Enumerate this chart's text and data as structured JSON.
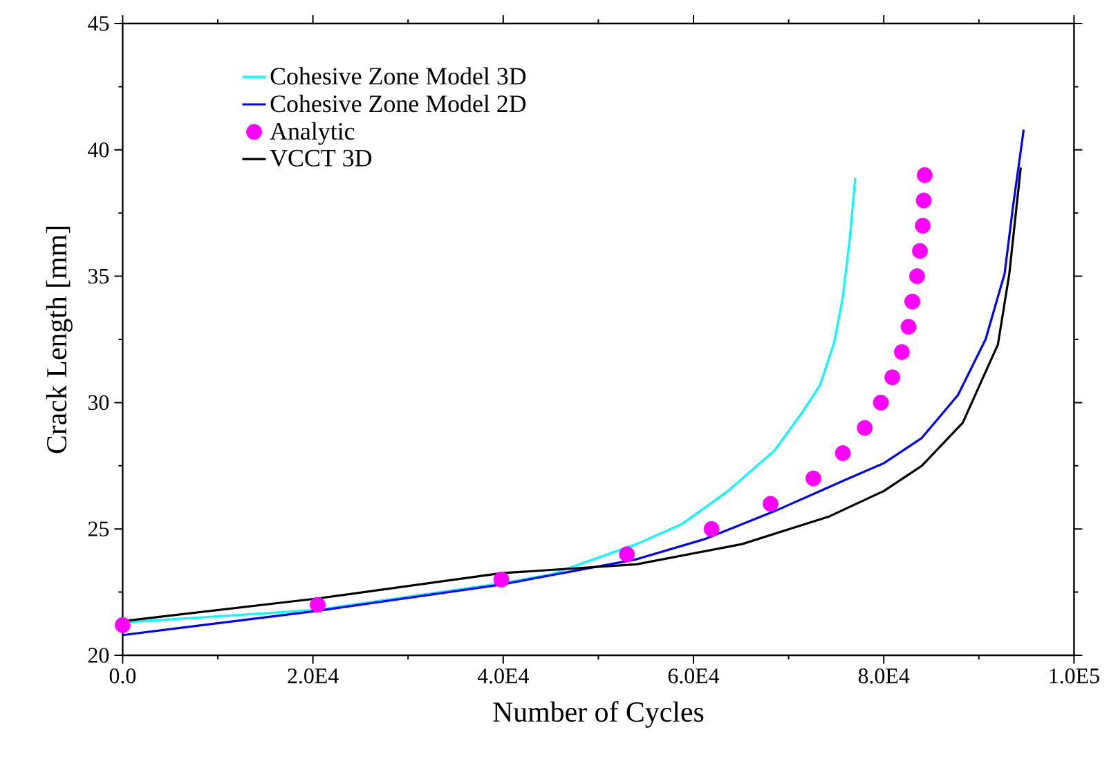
{
  "chart_data": {
    "type": "line",
    "xlabel": "Number of Cycles",
    "ylabel": "Crack Length [mm]",
    "xlim": [
      0,
      100000
    ],
    "ylim": [
      20,
      45
    ],
    "xticks": [
      {
        "value": 0,
        "label": "0.0"
      },
      {
        "value": 20000,
        "label": "2.0E4"
      },
      {
        "value": 40000,
        "label": "4.0E4"
      },
      {
        "value": 60000,
        "label": "6.0E4"
      },
      {
        "value": 80000,
        "label": "8.0E4"
      },
      {
        "value": 100000,
        "label": "1.0E5"
      }
    ],
    "yticks": [
      20,
      25,
      30,
      35,
      40,
      45
    ],
    "legend": "top left",
    "grid": false,
    "series": [
      {
        "name": "Cohesive Zone Model 3D",
        "color": "#00ffff",
        "line_style": "solid",
        "x": [
          0,
          20500,
          39800,
          45000,
          54000,
          58800,
          63600,
          68500,
          71400,
          73300,
          74800,
          75700,
          76400,
          77000
        ],
        "values": [
          21.3,
          21.8,
          22.85,
          23.2,
          24.4,
          25.2,
          26.5,
          28.1,
          29.6,
          30.7,
          32.4,
          34.2,
          36.4,
          38.9
        ]
      },
      {
        "name": "Cohesive Zone Model 2D",
        "color": "#0000ff",
        "line_style": "solid",
        "x": [
          0,
          20500,
          39800,
          54000,
          61200,
          68500,
          75700,
          80000,
          84000,
          87800,
          90700,
          92700,
          93600,
          94600,
          94700
        ],
        "values": [
          20.8,
          21.76,
          22.8,
          23.8,
          24.6,
          25.7,
          26.9,
          27.6,
          28.6,
          30.3,
          32.5,
          35.1,
          37.8,
          40.5,
          40.8
        ]
      },
      {
        "name": "Analytic",
        "color": "#ff00ff",
        "type": "scatter",
        "marker": "circle",
        "x": [
          0,
          20500,
          39800,
          53000,
          61900,
          68100,
          72600,
          75700,
          78000,
          79700,
          80900,
          81900,
          82600,
          83000,
          83500,
          83800,
          84100,
          84200,
          84300
        ],
        "values": [
          21.2,
          22,
          23,
          24,
          25,
          26,
          27,
          28,
          29,
          30,
          31,
          32,
          33,
          34,
          35,
          36,
          37,
          38,
          39
        ]
      },
      {
        "name": "VCCT 3D",
        "color": "#000000",
        "line_style": "solid",
        "x": [
          0,
          20500,
          39800,
          54000,
          65100,
          74300,
          80000,
          84000,
          88300,
          92000,
          93200,
          94400
        ],
        "values": [
          21.35,
          22.25,
          23.25,
          23.6,
          24.4,
          25.5,
          26.5,
          27.5,
          29.2,
          32.3,
          35.1,
          39.3
        ]
      }
    ]
  }
}
